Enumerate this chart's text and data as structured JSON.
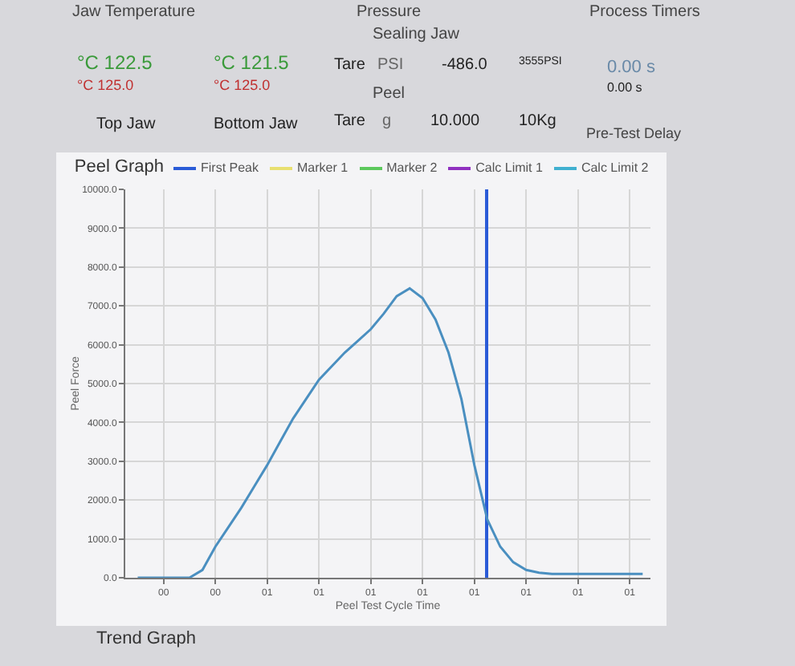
{
  "chart_data": {
    "type": "line",
    "title": "Peel Graph",
    "xlabel": "Peel Test Cycle Time",
    "ylabel": "Peel Force",
    "categories": [
      null,
      null,
      "00",
      null,
      null,
      null,
      "00",
      null,
      null,
      null,
      "01",
      null,
      null,
      null,
      "01",
      null,
      null,
      null,
      "01",
      null,
      null,
      null,
      "01",
      null,
      null,
      null,
      "01",
      null,
      null,
      null,
      "01",
      null,
      null,
      null,
      "01",
      null,
      null,
      null,
      "01",
      null
    ],
    "series": [
      {
        "color": "#4a8fc0",
        "values": [
          0,
          0,
          0,
          0,
          0,
          200,
          800,
          1300,
          1800,
          2350,
          2900,
          3500,
          4100,
          4600,
          5100,
          5450,
          5800,
          6100,
          6400,
          6800,
          7250,
          7450,
          7200,
          6650,
          5800,
          4600,
          2900,
          1500,
          800,
          400,
          200,
          130,
          100,
          100,
          100,
          100,
          100,
          100,
          100,
          100
        ]
      },
      {
        "name": "First Peak",
        "type": "bar",
        "color": "#2a5bd7",
        "values": [
          null,
          null,
          null,
          null,
          null,
          null,
          null,
          null,
          null,
          null,
          null,
          null,
          null,
          null,
          null,
          null,
          null,
          null,
          null,
          null,
          null,
          null,
          null,
          null,
          null,
          null,
          null,
          10000,
          null,
          null,
          null,
          null,
          null,
          null,
          null,
          null,
          null,
          null,
          null,
          null
        ]
      },
      {
        "name": "Marker 1",
        "color": "#e8e070",
        "values": [
          null,
          null,
          null,
          null,
          null,
          null,
          null,
          null,
          null,
          null,
          null,
          null,
          null,
          null,
          null,
          null,
          null,
          null,
          null,
          null,
          null,
          null,
          null,
          null,
          null,
          null,
          null,
          null,
          null,
          null,
          null,
          null,
          null,
          null,
          null,
          null,
          null,
          null,
          null,
          null
        ]
      },
      {
        "name": "Marker 2",
        "color": "#5cc85c",
        "values": [
          null,
          null,
          null,
          null,
          null,
          null,
          null,
          null,
          null,
          null,
          null,
          null,
          null,
          null,
          null,
          null,
          null,
          null,
          null,
          null,
          null,
          null,
          null,
          null,
          null,
          null,
          null,
          null,
          null,
          null,
          null,
          null,
          null,
          null,
          null,
          null,
          null,
          null,
          null,
          null
        ]
      },
      {
        "name": "Calc Limit 1",
        "color": "#9030c0",
        "values": [
          null,
          null,
          null,
          null,
          null,
          null,
          null,
          null,
          null,
          null,
          null,
          null,
          null,
          null,
          null,
          null,
          null,
          null,
          null,
          null,
          null,
          null,
          null,
          null,
          null,
          null,
          null,
          null,
          null,
          null,
          null,
          null,
          null,
          null,
          null,
          null,
          null,
          null,
          null,
          null
        ]
      },
      {
        "name": "Calc Limit 2",
        "color": "#40b0d0",
        "values": [
          null,
          null,
          null,
          null,
          null,
          null,
          null,
          null,
          null,
          null,
          null,
          null,
          null,
          null,
          null,
          null,
          null,
          null,
          null,
          null,
          null,
          null,
          null,
          null,
          null,
          null,
          null,
          null,
          null,
          null,
          null,
          null,
          null,
          null,
          null,
          null,
          null,
          null,
          null,
          null
        ]
      }
    ],
    "ylim": [
      0,
      10000
    ],
    "yticks": [
      {
        "value": 0,
        "label": "0.0"
      },
      {
        "value": 1000,
        "label": "1000.0"
      },
      {
        "value": 2000,
        "label": "2000.0"
      },
      {
        "value": 3000,
        "label": "3000.0"
      },
      {
        "value": 4000,
        "label": "4000.0"
      },
      {
        "value": 5000,
        "label": "5000.0"
      },
      {
        "value": 6000,
        "label": "6000.0"
      },
      {
        "value": 7000,
        "label": "7000.0"
      },
      {
        "value": 8000,
        "label": "8000.0"
      },
      {
        "value": 9000,
        "label": "9000.0"
      },
      {
        "value": 10000,
        "label": "10000.0"
      }
    ],
    "grid": true,
    "legend": "top",
    "marker": "none",
    "line_style": "solid",
    "annotations": [
      "Jaw Temperature",
      "°C 122.5",
      "°C 125.0",
      "Top Jaw",
      "°C 121.5",
      "°C 125.0",
      "Bottom Jaw",
      "Pressure",
      "Sealing Jaw",
      "Tare",
      "PSI",
      "-486.0",
      "3555PSI",
      "Peel",
      "Tare",
      "g",
      "10.000",
      "10Kg",
      "Process Timers",
      "0.00 s",
      "0.00 s",
      "Pre-Test Delay",
      "Trend Graph"
    ]
  }
}
